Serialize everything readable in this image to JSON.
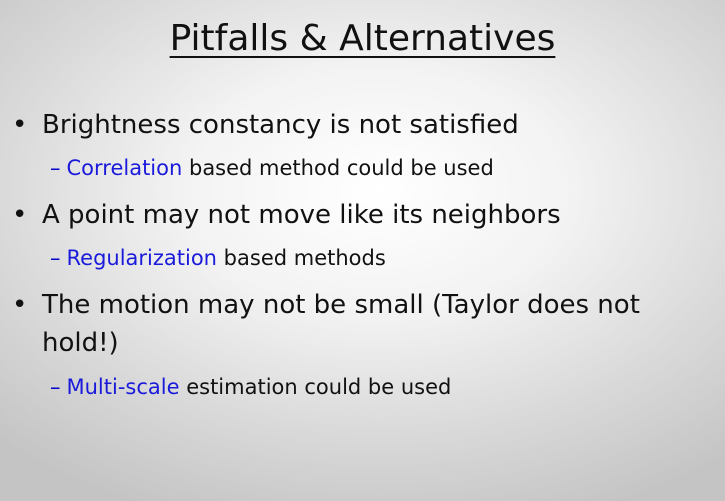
{
  "title": "Pitfalls & Alternatives",
  "bullets": [
    {
      "text": "Brightness constancy is not satisfied",
      "sub": {
        "dash": "–",
        "highlight": "Correlation",
        "rest": " based method could be used"
      }
    },
    {
      "text": "A point may not move like its neighbors",
      "sub": {
        "dash": "–",
        "highlight": "Regularization",
        "rest": " based methods"
      }
    },
    {
      "text": "The motion may not be small (Taylor does not hold!)",
      "sub": {
        "dash": "–",
        "highlight": "Multi-scale",
        "rest": " estimation could be used"
      }
    }
  ],
  "bullet_symbol": "•",
  "colors": {
    "highlight": "#1a1adb",
    "text": "#111111"
  }
}
